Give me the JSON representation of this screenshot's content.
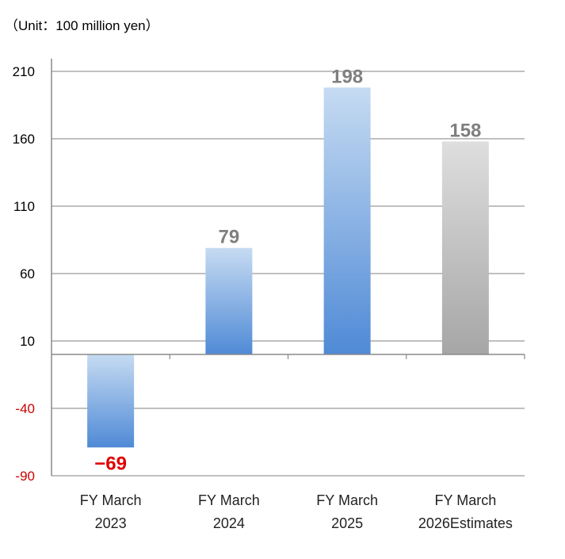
{
  "unit_note": "（Unit：100 million yen）",
  "colors": {
    "grid": "#9a9a9a",
    "axis": "#8a8a8a",
    "positive_tick": "#000000",
    "negative_tick": "#cc0000",
    "positive_label": "#7f7f7f",
    "negative_label": "#e00000",
    "blue_top": "#c6dbf2",
    "blue_bottom": "#4f8ad6",
    "gray_top": "#dedede",
    "gray_bottom": "#a6a6a6"
  },
  "chart_data": {
    "type": "bar",
    "title": "",
    "xlabel": "",
    "ylabel": "",
    "ylim": [
      -90,
      210
    ],
    "yticks": [
      210,
      160,
      110,
      60,
      10,
      -40,
      -90
    ],
    "grid": true,
    "categories": [
      [
        "FY March",
        "2023"
      ],
      [
        "FY March",
        "2024"
      ],
      [
        "FY March",
        "2025"
      ],
      [
        "FY March",
        "2026Estimates"
      ]
    ],
    "values": [
      -69,
      79,
      198,
      158
    ],
    "data_labels": [
      "−69",
      "79",
      "198",
      "158"
    ],
    "bar_styles": [
      "blue",
      "blue",
      "blue",
      "gray"
    ]
  }
}
